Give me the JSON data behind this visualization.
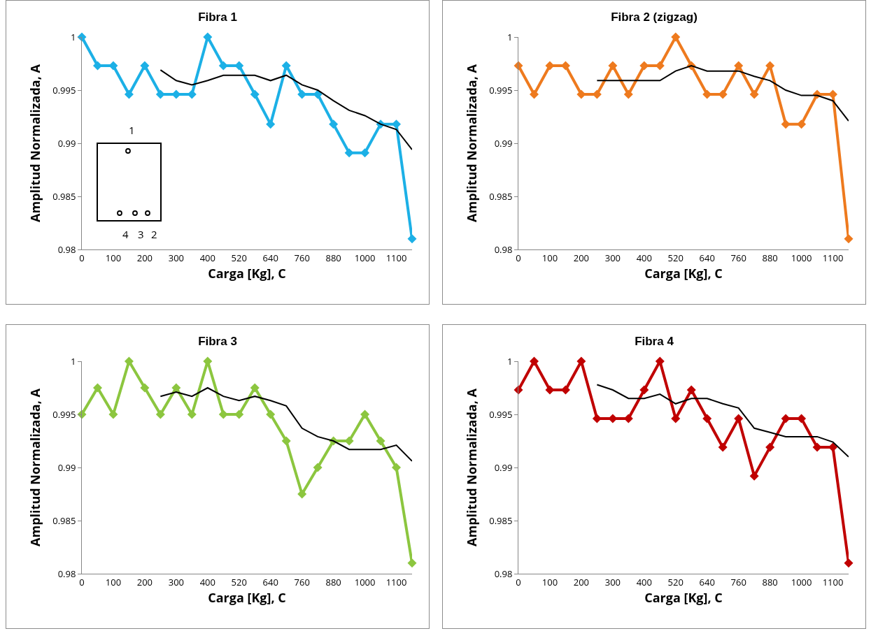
{
  "chart_data": [
    {
      "type": "line",
      "title": "Fibra 1",
      "xlabel": "Carga [Kg], C",
      "ylabel": "Amplitud Normalizada, A",
      "categories": [
        "0",
        null,
        "100",
        null,
        "200",
        null,
        "300",
        null,
        "400",
        null,
        "520",
        null,
        "640",
        null,
        "760",
        null,
        "880",
        null,
        "1000",
        null,
        "1100",
        null
      ],
      "ylim": [
        0.98,
        1
      ],
      "yticks": [
        0.98,
        0.985,
        0.99,
        0.995,
        1
      ],
      "marker": "diamond",
      "annotations": [
        "1",
        "4",
        "3",
        "2"
      ],
      "series": [
        {
          "color": "#1cb0e6",
          "values": [
            1,
            0.9973,
            0.9973,
            0.9946,
            0.9973,
            0.9946,
            0.9946,
            0.9946,
            1,
            0.9973,
            0.9973,
            0.9946,
            0.9918,
            0.9973,
            0.9946,
            0.9946,
            0.9918,
            0.9891,
            0.9891,
            0.9918,
            0.9918,
            0.981
          ]
        },
        {
          "color": "#000000",
          "marker": "none",
          "values": [
            null,
            null,
            null,
            null,
            null,
            0.9969,
            0.9959,
            0.9955,
            0.9959,
            0.9964,
            0.9964,
            0.9964,
            0.9959,
            0.9964,
            0.9955,
            0.995,
            0.994,
            0.9931,
            0.9926,
            0.9918,
            0.9913,
            0.9894
          ]
        }
      ]
    },
    {
      "type": "line",
      "title": "Fibra 2 (zigzag)",
      "xlabel": "Carga [Kg], C",
      "ylabel": "Amplitud Normalizada, A",
      "categories": [
        "0",
        null,
        "100",
        null,
        "200",
        null,
        "300",
        null,
        "400",
        null,
        "520",
        null,
        "640",
        null,
        "760",
        null,
        "880",
        null,
        "1000",
        null,
        "1100",
        null
      ],
      "ylim": [
        0.98,
        1
      ],
      "yticks": [
        0.98,
        0.985,
        0.99,
        0.995,
        1
      ],
      "marker": "diamond",
      "series": [
        {
          "color": "#ee7a1e",
          "values": [
            0.9973,
            0.9946,
            0.9973,
            0.9973,
            0.9946,
            0.9946,
            0.9973,
            0.9946,
            0.9973,
            0.9973,
            1,
            0.9973,
            0.9946,
            0.9946,
            0.9973,
            0.9946,
            0.9973,
            0.9918,
            0.9918,
            0.9946,
            0.9946,
            0.981
          ]
        },
        {
          "color": "#000000",
          "marker": "none",
          "values": [
            null,
            null,
            null,
            null,
            null,
            0.9959,
            0.9959,
            0.9959,
            0.9959,
            0.9959,
            0.9968,
            0.9973,
            0.9968,
            0.9968,
            0.9968,
            0.9963,
            0.9959,
            0.995,
            0.9945,
            0.9945,
            0.994,
            0.9921
          ]
        }
      ]
    },
    {
      "type": "line",
      "title": "Fibra 3",
      "xlabel": "Carga [Kg], C",
      "ylabel": "Amplitud Normalizada, A",
      "categories": [
        "0",
        null,
        "100",
        null,
        "200",
        null,
        "300",
        null,
        "400",
        null,
        "520",
        null,
        "640",
        null,
        "760",
        null,
        "880",
        null,
        "1000",
        null,
        "1100",
        null
      ],
      "ylim": [
        0.98,
        1
      ],
      "yticks": [
        0.98,
        0.985,
        0.99,
        0.995,
        1
      ],
      "marker": "diamond",
      "series": [
        {
          "color": "#8cc63f",
          "values": [
            0.995,
            0.9975,
            0.995,
            1,
            0.9975,
            0.995,
            0.9975,
            0.995,
            1,
            0.995,
            0.995,
            0.9975,
            0.995,
            0.9925,
            0.9875,
            0.99,
            0.9925,
            0.9925,
            0.995,
            0.9925,
            0.99,
            0.981
          ]
        },
        {
          "color": "#000000",
          "marker": "none",
          "values": [
            null,
            null,
            null,
            null,
            null,
            0.9967,
            0.9971,
            0.9967,
            0.9975,
            0.9967,
            0.9963,
            0.9967,
            0.9963,
            0.9958,
            0.9937,
            0.9929,
            0.9925,
            0.9917,
            0.9917,
            0.9917,
            0.9921,
            0.9906
          ]
        }
      ]
    },
    {
      "type": "line",
      "title": "Fibra 4",
      "xlabel": "Carga [Kg], C",
      "ylabel": "Amplitud Normalizada, A",
      "categories": [
        "0",
        null,
        "100",
        null,
        "200",
        null,
        "300",
        null,
        "400",
        null,
        "520",
        null,
        "640",
        null,
        "760",
        null,
        "880",
        null,
        "1000",
        null,
        "1100",
        null
      ],
      "ylim": [
        0.98,
        1
      ],
      "yticks": [
        0.98,
        0.985,
        0.99,
        0.995,
        1
      ],
      "marker": "diamond",
      "series": [
        {
          "color": "#c00000",
          "values": [
            0.9973,
            1,
            0.9973,
            0.9973,
            1,
            0.9946,
            0.9946,
            0.9946,
            0.9973,
            1,
            0.9946,
            0.9973,
            0.9946,
            0.9919,
            0.9946,
            0.9892,
            0.9919,
            0.9946,
            0.9946,
            0.9919,
            0.9919,
            0.981
          ]
        },
        {
          "color": "#000000",
          "marker": "none",
          "values": [
            null,
            null,
            null,
            null,
            null,
            0.9978,
            0.9973,
            0.9965,
            0.9965,
            0.9969,
            0.996,
            0.9965,
            0.9965,
            0.996,
            0.9956,
            0.9937,
            0.9933,
            0.9929,
            0.9929,
            0.9929,
            0.9924,
            0.991
          ]
        }
      ]
    }
  ]
}
